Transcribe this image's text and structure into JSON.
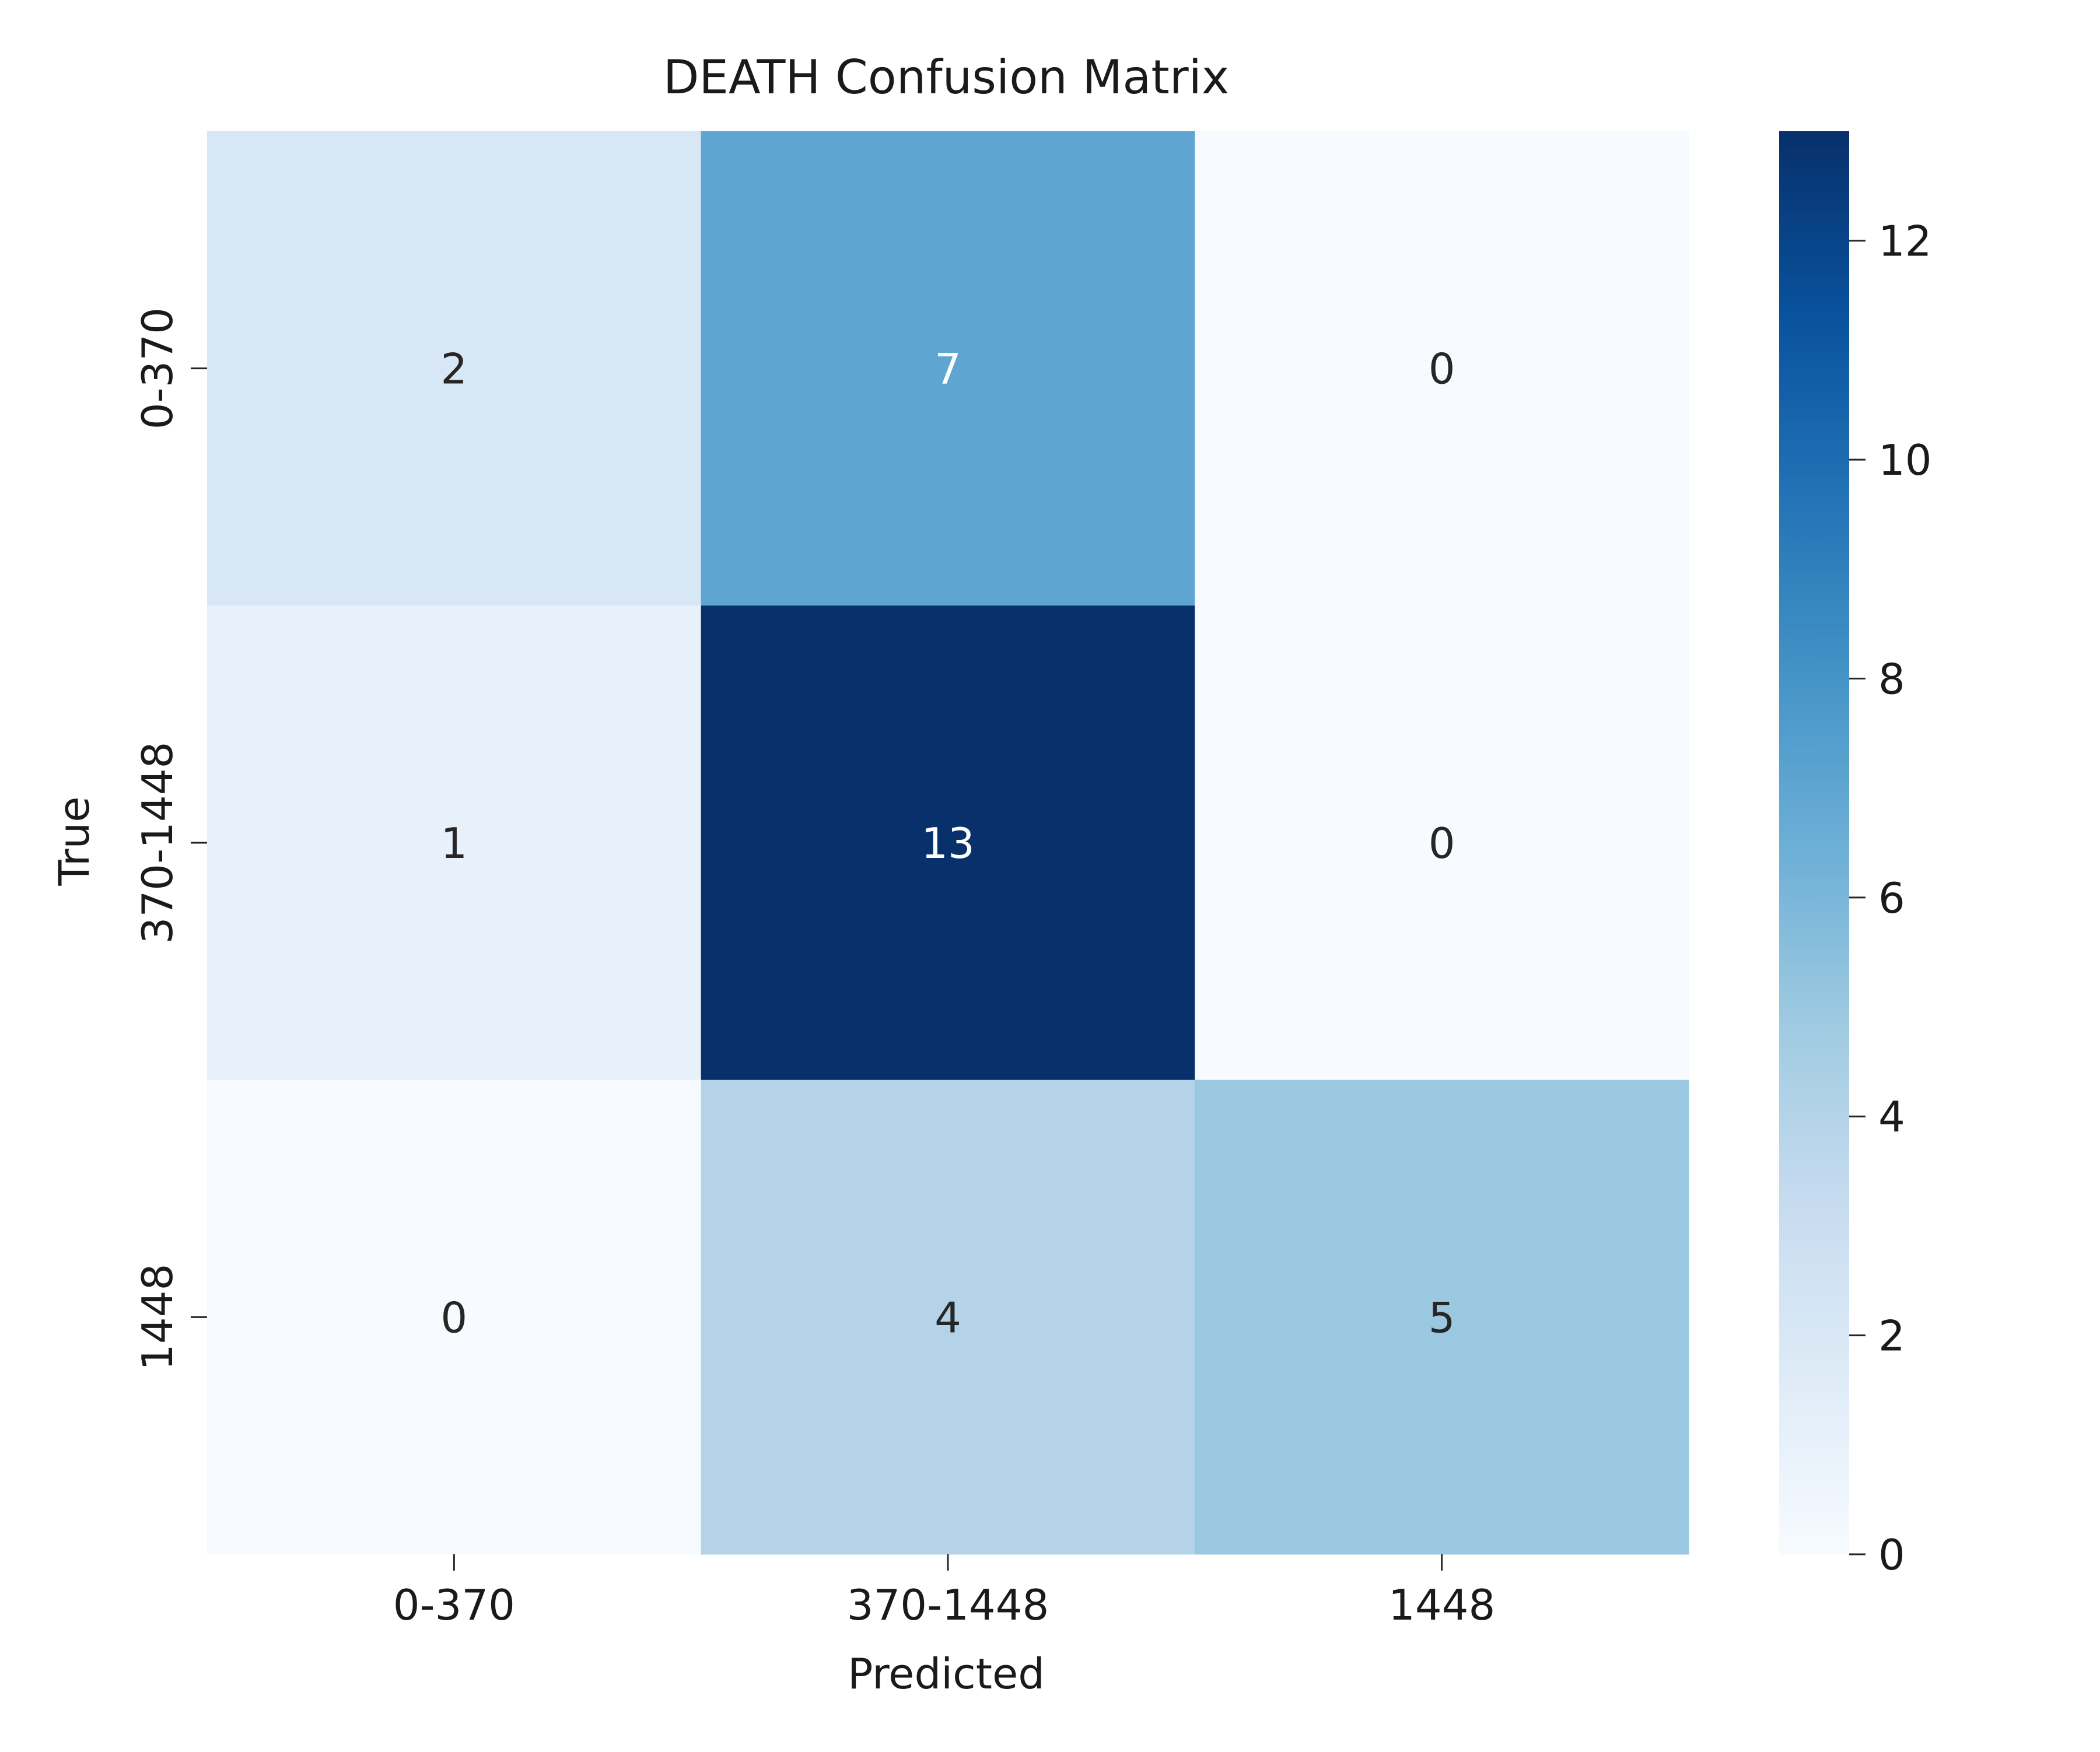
{
  "chart_data": {
    "type": "heatmap",
    "title": "DEATH Confusion Matrix",
    "xlabel": "Predicted",
    "ylabel": "True",
    "x_categories": [
      "0-370",
      "370-1448",
      "1448"
    ],
    "y_categories": [
      "0-370",
      "370-1448",
      "1448"
    ],
    "values": [
      [
        2,
        7,
        0
      ],
      [
        1,
        13,
        0
      ],
      [
        0,
        4,
        5
      ]
    ],
    "colorbar": {
      "min": 0,
      "max": 13,
      "ticks": [
        0,
        2,
        4,
        6,
        8,
        10,
        12
      ]
    },
    "colormap": "Blues",
    "colormap_stops": [
      "#f7fbff",
      "#deebf7",
      "#c6dbef",
      "#9ecae1",
      "#6baed6",
      "#4292c6",
      "#2171b5",
      "#08519c",
      "#08306b"
    ],
    "text_colors": {
      "dark": "#262626",
      "light": "#ffffff"
    },
    "grid": false
  }
}
